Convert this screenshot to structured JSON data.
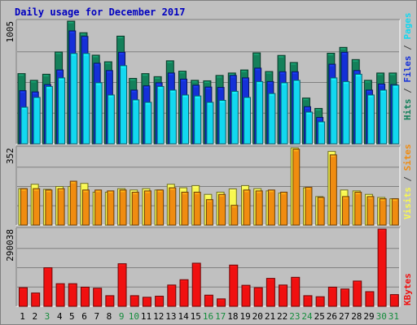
{
  "title": "Daily usage for December 2017",
  "colors": {
    "hits": "#14805a",
    "files": "#1530d8",
    "pages": "#12d8f0",
    "visits": "#f8f850",
    "sites": "#f08c10",
    "kbytes": "#f01010",
    "panel": "#c0c0c0",
    "title": "#0000c0",
    "weekend_label": "#148c3c"
  },
  "legend": {
    "top": [
      "Hits",
      "/",
      "Files",
      "/",
      "Pages"
    ],
    "mid": [
      "Visits",
      "/",
      "Sites"
    ],
    "bot": [
      "KBytes"
    ]
  },
  "axis_max": {
    "top": "1005",
    "mid": "352",
    "bot": "290038"
  },
  "days": [
    "1",
    "2",
    "3",
    "4",
    "5",
    "6",
    "7",
    "8",
    "9",
    "10",
    "11",
    "12",
    "13",
    "14",
    "15",
    "16",
    "17",
    "18",
    "19",
    "20",
    "21",
    "22",
    "23",
    "24",
    "25",
    "26",
    "27",
    "28",
    "29",
    "30",
    "31"
  ],
  "weekend_days": [
    3,
    9,
    10,
    16,
    17,
    23,
    24,
    30,
    31
  ],
  "chart_data": {
    "type": "bar",
    "title": "Daily usage for December 2017",
    "categories": [
      "1",
      "2",
      "3",
      "4",
      "5",
      "6",
      "7",
      "8",
      "9",
      "10",
      "11",
      "12",
      "13",
      "14",
      "15",
      "16",
      "17",
      "18",
      "19",
      "20",
      "21",
      "22",
      "23",
      "24",
      "25",
      "26",
      "27",
      "28",
      "29",
      "30",
      "31"
    ],
    "panels": [
      {
        "ylim": [
          0,
          1005
        ],
        "series": [
          {
            "name": "Hits",
            "values": [
              575,
              520,
              570,
              752,
              1005,
              910,
              726,
              672,
              882,
              536,
              575,
              550,
              680,
              595,
              520,
              516,
              560,
              580,
              605,
              745,
              592,
              724,
              666,
              375,
              290,
              742,
              790,
              690,
              520,
              580,
              580
            ]
          },
          {
            "name": "Files",
            "values": [
              435,
              425,
              485,
              605,
              925,
              880,
              660,
              600,
              750,
              440,
              475,
              500,
              580,
              530,
              480,
              465,
              462,
              560,
              540,
              620,
              510,
              590,
              590,
              304,
              216,
              652,
              750,
              600,
              440,
              490,
              485
            ]
          },
          {
            "name": "Pages",
            "values": [
              300,
              380,
              470,
              540,
              740,
              740,
              500,
              400,
              640,
              360,
              340,
              470,
              440,
              400,
              392,
              340,
              356,
              430,
              380,
              510,
              412,
              500,
              520,
              260,
              180,
              540,
              510,
              570,
              400,
              440,
              480
            ]
          }
        ]
      },
      {
        "ylim": [
          0,
          352
        ],
        "series": [
          {
            "name": "Visits",
            "values": [
              166,
              186,
              163,
              176,
              176,
              190,
              150,
              150,
              166,
              160,
              166,
              160,
              186,
              170,
              180,
              140,
              150,
              165,
              180,
              166,
              156,
              146,
              352,
              170,
              130,
              336,
              160,
              156,
              140,
              126,
              120
            ]
          },
          {
            "name": "Sites",
            "values": [
              166,
              166,
              160,
              166,
              200,
              160,
              160,
              156,
              160,
              150,
              156,
              160,
              170,
              150,
              150,
              116,
              140,
              90,
              160,
              156,
              160,
              150,
              346,
              172,
              126,
              320,
              130,
              150,
              130,
              120,
              120
            ]
          }
        ]
      },
      {
        "ylim": [
          0,
          290038
        ],
        "series": [
          {
            "name": "KBytes",
            "values": [
              70000,
              50000,
              145000,
              85000,
              85000,
              72000,
              68000,
              40000,
              160000,
              40000,
              34000,
              38000,
              80000,
              100000,
              162000,
              42000,
              28000,
              155000,
              79000,
              70000,
              105000,
              80000,
              109000,
              40000,
              36000,
              72000,
              65000,
              95000,
              55000,
              290038,
              44000
            ]
          }
        ]
      }
    ]
  }
}
